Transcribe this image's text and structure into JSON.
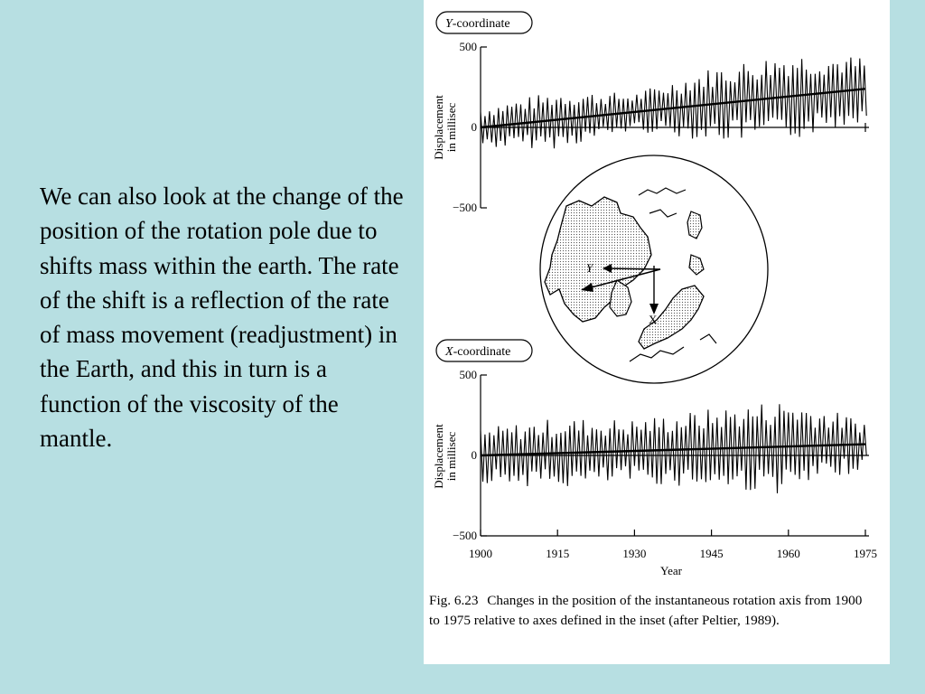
{
  "slide": {
    "body_text": "We can also look at the change of the position of the rotation pole due to shifts mass within the earth.   The rate of the shift is a reflection of the rate of mass movement (readjustment) in the Earth, and this in turn is a function of the viscosity of the mantle."
  },
  "figure": {
    "caption_number": "Fig. 6.23",
    "caption_text": "Changes in the position of the instantaneous rotation axis from 1900 to 1975 relative to axes defined in the inset (after Peltier, 1989).",
    "inset": {
      "y_arrow_label": "Y",
      "x_arrow_label": "X"
    }
  },
  "chart_data": [
    {
      "type": "line",
      "panel_label_italic": "Y",
      "panel_label_rest": "-coordinate",
      "ylabel_line1": "Displacement",
      "ylabel_line2": "in millisec",
      "ylim": [
        -500,
        500
      ],
      "yticks": [
        "500",
        "0",
        "−500"
      ],
      "ytick_values": [
        500,
        0,
        -500
      ],
      "x_range": [
        1900,
        1975
      ],
      "grid": false,
      "series": [
        {
          "kind": "oscillation",
          "amplitude_envelope": {
            "x": [
              1900,
              1915,
              1930,
              1945,
              1960,
              1975
            ],
            "values": [
              130,
              180,
              120,
              230,
              280,
              200
            ]
          },
          "periods_per_year": 1.15
        },
        {
          "kind": "trend",
          "x": [
            1900,
            1975
          ],
          "values": [
            0,
            240
          ]
        }
      ]
    },
    {
      "type": "line",
      "panel_label_italic": "X",
      "panel_label_rest": "-coordinate",
      "ylabel_line1": "Displacement",
      "ylabel_line2": "in millisec",
      "ylim": [
        -500,
        500
      ],
      "yticks": [
        "500",
        "0",
        "−500"
      ],
      "ytick_values": [
        500,
        0,
        -500
      ],
      "xticks": [
        "1900",
        "1915",
        "1930",
        "1945",
        "1960",
        "1975"
      ],
      "xtick_values": [
        1900,
        1915,
        1930,
        1945,
        1960,
        1975
      ],
      "xlabel": "Year",
      "x_range": [
        1900,
        1975
      ],
      "grid": false,
      "series": [
        {
          "kind": "oscillation",
          "amplitude_envelope": {
            "x": [
              1900,
              1915,
              1930,
              1945,
              1960,
              1975
            ],
            "values": [
              170,
              220,
              200,
              250,
              300,
              150
            ]
          },
          "periods_per_year": 1.15
        },
        {
          "kind": "trend",
          "x": [
            1900,
            1975
          ],
          "values": [
            0,
            70
          ]
        }
      ]
    }
  ]
}
